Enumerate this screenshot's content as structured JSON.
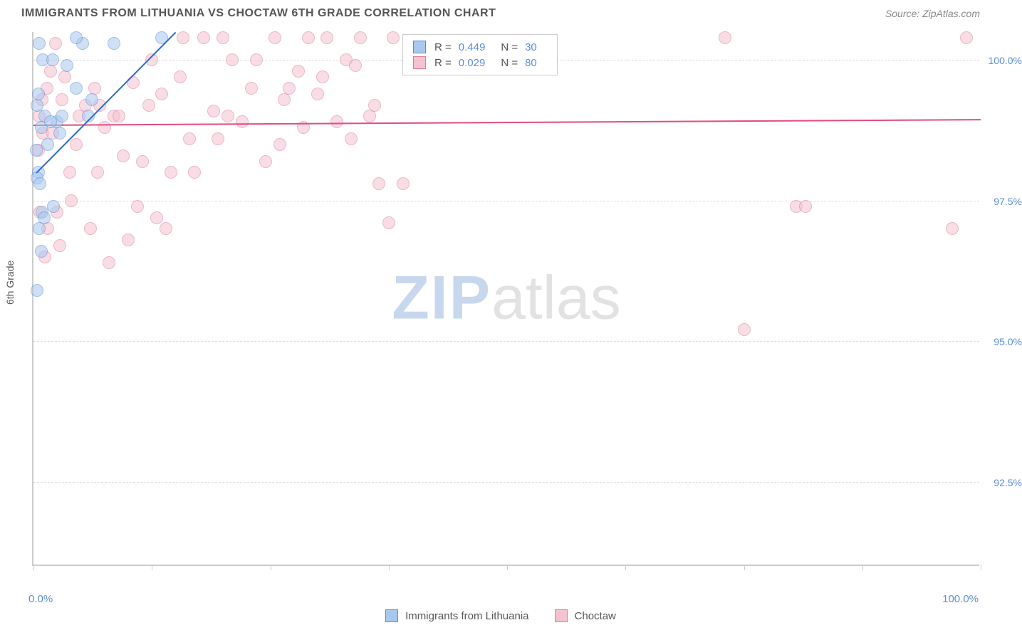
{
  "header": {
    "title": "IMMIGRANTS FROM LITHUANIA VS CHOCTAW 6TH GRADE CORRELATION CHART",
    "source_label": "Source:",
    "source_name": "ZipAtlas.com"
  },
  "chart": {
    "type": "scatter",
    "y_axis_title": "6th Grade",
    "xlim": [
      0,
      100
    ],
    "ylim": [
      91,
      100.5
    ],
    "x_axis_min_label": "0.0%",
    "x_axis_max_label": "100.0%",
    "x_tick_positions": [
      0,
      12.5,
      25,
      37.5,
      50,
      62.5,
      75,
      87.5,
      100
    ],
    "y_gridlines": [
      {
        "value": 100.0,
        "label": "100.0%"
      },
      {
        "value": 97.5,
        "label": "97.5%"
      },
      {
        "value": 95.0,
        "label": "95.0%"
      },
      {
        "value": 92.5,
        "label": "92.5%"
      }
    ],
    "background_color": "#ffffff",
    "grid_color": "#dddddd",
    "axis_color": "#cccccc",
    "tick_label_color": "#5b8dd6"
  },
  "series": {
    "lithuania": {
      "label": "Immigrants from Lithuania",
      "fill_color": "#a9c8ee",
      "stroke_color": "#5b8dd6",
      "fill_opacity": 0.55,
      "trend_color": "#2e6bd1",
      "trend_width": 2,
      "R": "0.449",
      "N": "30",
      "trend": {
        "x1": 0.3,
        "y1": 98.0,
        "x2": 15.0,
        "y2": 100.5
      },
      "points": [
        [
          0.4,
          99.2
        ],
        [
          0.6,
          100.3
        ],
        [
          5.2,
          100.3
        ],
        [
          8.5,
          100.3
        ],
        [
          1.0,
          100.0
        ],
        [
          2.0,
          100.0
        ],
        [
          3.5,
          99.9
        ],
        [
          4.5,
          99.5
        ],
        [
          1.2,
          99.0
        ],
        [
          0.5,
          99.4
        ],
        [
          0.8,
          98.8
        ],
        [
          0.3,
          98.4
        ],
        [
          1.5,
          98.5
        ],
        [
          2.5,
          98.9
        ],
        [
          3.0,
          99.0
        ],
        [
          0.5,
          98.0
        ],
        [
          0.4,
          97.9
        ],
        [
          1.8,
          98.9
        ],
        [
          0.7,
          97.8
        ],
        [
          0.9,
          97.3
        ],
        [
          1.1,
          97.2
        ],
        [
          0.6,
          97.0
        ],
        [
          0.8,
          96.6
        ],
        [
          2.1,
          97.4
        ],
        [
          0.4,
          95.9
        ],
        [
          4.5,
          100.4
        ],
        [
          5.8,
          99.0
        ],
        [
          6.2,
          99.3
        ],
        [
          2.8,
          98.7
        ],
        [
          13.5,
          100.4
        ]
      ]
    },
    "choctaw": {
      "label": "Choctaw",
      "fill_color": "#f4c3cf",
      "stroke_color": "#e37a99",
      "fill_opacity": 0.55,
      "trend_color": "#e34b7e",
      "trend_width": 2,
      "R": "0.029",
      "N": "80",
      "trend": {
        "x1": 0.0,
        "y1": 98.85,
        "x2": 100.0,
        "y2": 98.95
      },
      "points": [
        [
          1.0,
          98.7
        ],
        [
          2.0,
          98.7
        ],
        [
          3.0,
          99.3
        ],
        [
          4.5,
          98.5
        ],
        [
          5.5,
          99.2
        ],
        [
          6.5,
          99.5
        ],
        [
          7.5,
          98.8
        ],
        [
          8.5,
          99.0
        ],
        [
          9.5,
          98.3
        ],
        [
          10.5,
          99.6
        ],
        [
          11.5,
          98.2
        ],
        [
          12.5,
          100.0
        ],
        [
          13.5,
          99.4
        ],
        [
          14.5,
          98.0
        ],
        [
          15.5,
          99.7
        ],
        [
          16.5,
          98.6
        ],
        [
          18.0,
          100.4
        ],
        [
          19.0,
          99.1
        ],
        [
          20.0,
          100.4
        ],
        [
          21.0,
          100.0
        ],
        [
          22.0,
          98.9
        ],
        [
          23.0,
          99.5
        ],
        [
          24.5,
          98.2
        ],
        [
          25.5,
          100.4
        ],
        [
          26.5,
          99.3
        ],
        [
          28.0,
          99.8
        ],
        [
          29.0,
          100.4
        ],
        [
          30.0,
          99.4
        ],
        [
          31.0,
          100.4
        ],
        [
          32.0,
          98.9
        ],
        [
          33.0,
          100.0
        ],
        [
          34.0,
          99.9
        ],
        [
          34.5,
          100.4
        ],
        [
          35.5,
          99.0
        ],
        [
          38.0,
          100.4
        ],
        [
          36.5,
          97.8
        ],
        [
          37.5,
          97.1
        ],
        [
          2.5,
          97.3
        ],
        [
          4.0,
          97.5
        ],
        [
          6.0,
          97.0
        ],
        [
          10.0,
          96.8
        ],
        [
          11.0,
          97.4
        ],
        [
          13.0,
          97.2
        ],
        [
          14.0,
          97.0
        ],
        [
          8.0,
          96.4
        ],
        [
          39.0,
          97.8
        ],
        [
          1.5,
          97.0
        ],
        [
          0.7,
          97.3
        ],
        [
          73.0,
          100.4
        ],
        [
          75.0,
          95.2
        ],
        [
          80.5,
          97.4
        ],
        [
          81.5,
          97.4
        ],
        [
          97.0,
          97.0
        ],
        [
          98.5,
          100.4
        ],
        [
          1.2,
          96.5
        ],
        [
          2.8,
          96.7
        ],
        [
          3.8,
          98.0
        ],
        [
          4.8,
          99.0
        ],
        [
          0.5,
          98.4
        ],
        [
          1.8,
          99.8
        ],
        [
          2.3,
          100.3
        ],
        [
          17.0,
          98.0
        ],
        [
          19.5,
          98.6
        ],
        [
          27.0,
          99.5
        ],
        [
          0.9,
          99.3
        ],
        [
          1.4,
          99.5
        ],
        [
          0.6,
          99.0
        ],
        [
          3.3,
          99.7
        ],
        [
          6.8,
          98.0
        ],
        [
          9.0,
          99.0
        ],
        [
          12.2,
          99.2
        ],
        [
          15.8,
          100.4
        ],
        [
          23.5,
          100.0
        ],
        [
          26.0,
          98.5
        ],
        [
          28.5,
          98.8
        ],
        [
          30.5,
          99.7
        ],
        [
          33.5,
          98.6
        ],
        [
          36.0,
          99.2
        ],
        [
          20.5,
          99.0
        ],
        [
          7.0,
          99.2
        ]
      ]
    }
  },
  "legend_top": {
    "rows": [
      {
        "series": "lithuania",
        "R_label": "R =",
        "N_label": "N ="
      },
      {
        "series": "choctaw",
        "R_label": "R =",
        "N_label": "N ="
      }
    ]
  },
  "watermark": {
    "zip": "ZIP",
    "atlas": "atlas"
  }
}
